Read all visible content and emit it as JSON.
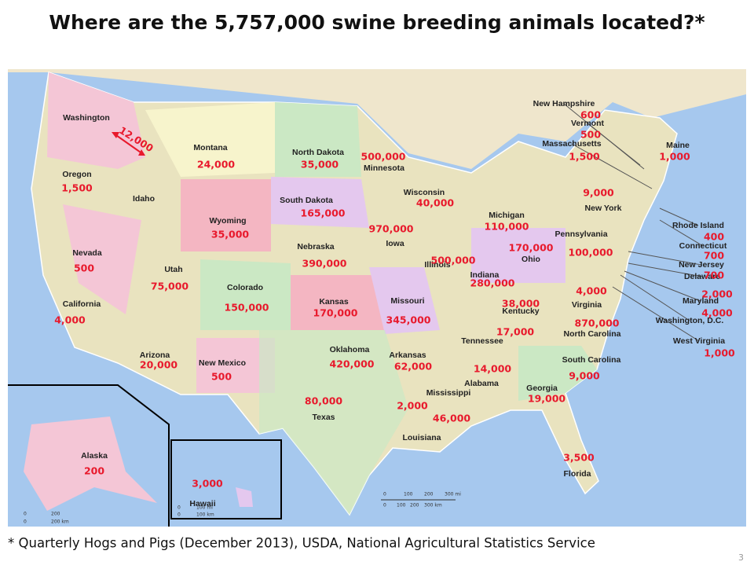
{
  "header": {
    "title": "Where are the 5,757,000 swine breeding animals located?*"
  },
  "map": {
    "states": [
      "Washington",
      "Oregon",
      "California",
      "Nevada",
      "Idaho",
      "Montana",
      "Wyoming",
      "Utah",
      "Colorado",
      "Arizona",
      "New Mexico",
      "North Dakota",
      "South Dakota",
      "Nebraska",
      "Kansas",
      "Oklahoma",
      "Texas",
      "Minnesota",
      "Iowa",
      "Missouri",
      "Arkansas",
      "Louisiana",
      "Wisconsin",
      "Illinois",
      "Michigan",
      "Indiana",
      "Ohio",
      "Kentucky",
      "Tennessee",
      "Mississippi",
      "Alabama",
      "Georgia",
      "Florida",
      "South Carolina",
      "North Carolina",
      "Virginia",
      "Pennsylvania",
      "New York",
      "Maine",
      "New Hampshire",
      "Vermont",
      "Massachusetts",
      "Rhode Island",
      "Connecticut",
      "New Jersey",
      "Delaware",
      "Maryland",
      "Washington, D.C.",
      "West Virginia",
      "Alaska",
      "Hawaii"
    ],
    "values": [
      "12,000",
      "24,000",
      "35,000",
      "500,000",
      "1,500",
      "165,000",
      "35,000",
      "970,000",
      "390,000",
      "500",
      "75,000",
      "150,000",
      "4,000",
      "170,000",
      "345,000",
      "20,000",
      "500",
      "420,000",
      "62,000",
      "80,000",
      "2,000",
      "46,000",
      "40,000",
      "110,000",
      "500,000",
      "170,000",
      "100,000",
      "280,000",
      "38,000",
      "4,000",
      "870,000",
      "17,000",
      "14,000",
      "9,000",
      "19,000",
      "3,500",
      "600",
      "500",
      "1,500",
      "1,000",
      "9,000",
      "400",
      "700",
      "700",
      "2,000",
      "4,000",
      "1,000",
      "200",
      "3,000"
    ],
    "scale": [
      "0",
      "100",
      "200",
      "300 mi",
      "0",
      "100",
      "200",
      "300 km"
    ],
    "alaska_scale": [
      "0",
      "200",
      "0",
      "200 km"
    ],
    "hawaii_scale": [
      "0",
      "100 mi",
      "0",
      "100 km"
    ]
  },
  "footer": {
    "note": "* Quarterly Hogs and Pigs (December 2013), USDA, National Agricultural Statistics Service",
    "page": "3"
  }
}
